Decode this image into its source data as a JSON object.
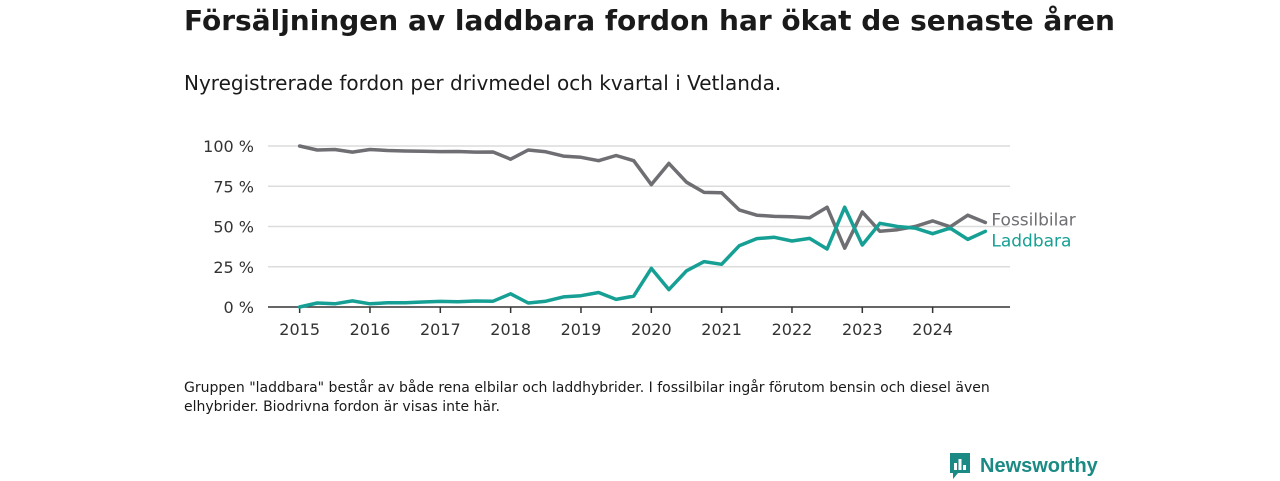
{
  "title": "Försäljningen av laddbara fordon har ökat de senaste åren",
  "subtitle": "Nyregistrerade fordon per drivmedel och kvartal i Vetlanda.",
  "note": "Gruppen \"laddbara\" består av både rena elbilar och laddhybrider. I fossilbilar ingår förutom bensin och diesel även elhybrider. Biodrivna fordon är visas inte här.",
  "brand": {
    "name": "Newsworthy",
    "icon": "newsworthy-logo-icon"
  },
  "colors": {
    "fossil": "#6e6e73",
    "laddbara": "#16a095",
    "grid": "#dcdcdc",
    "axis": "#333333",
    "brand": "#1b8a84"
  },
  "chart_data": {
    "type": "line",
    "x_start": 2015,
    "x_step": 0.25,
    "x_ticks": [
      2015,
      2016,
      2017,
      2018,
      2019,
      2020,
      2021,
      2022,
      2023,
      2024
    ],
    "y_ticks": [
      0,
      25,
      50,
      75,
      100
    ],
    "y_tick_labels": [
      "0 %",
      "25 %",
      "50 %",
      "75 %",
      "100 %"
    ],
    "ylim": [
      0,
      100
    ],
    "xlim": [
      2014.55,
      2025.1
    ],
    "grid": true,
    "series": [
      {
        "name": "Fossilbilar",
        "color_key": "fossil",
        "values": [
          100,
          97.5,
          97.8,
          96.2,
          97.8,
          97.2,
          96.9,
          96.8,
          96.5,
          96.6,
          96.2,
          96.3,
          91.8,
          97.5,
          96.4,
          93.7,
          93.0,
          90.9,
          94.1,
          90.9,
          76.0,
          89.2,
          77.5,
          71.2,
          71.0,
          60.3,
          57.0,
          56.3,
          56.0,
          55.4,
          62.0,
          36.5,
          59.0,
          47.0,
          48.0,
          50.0,
          53.5,
          49.8,
          57.0,
          52.5
        ]
      },
      {
        "name": "Laddbara",
        "color_key": "laddbara",
        "values": [
          0,
          2.5,
          2.0,
          3.8,
          2.0,
          2.6,
          2.6,
          3.1,
          3.5,
          3.3,
          3.7,
          3.6,
          8.2,
          2.5,
          3.6,
          6.3,
          7.0,
          9.0,
          4.7,
          6.8,
          24.0,
          10.8,
          22.5,
          28.2,
          26.5,
          38.0,
          42.5,
          43.3,
          41.0,
          42.6,
          36.0,
          62.0,
          38.5,
          52.0,
          50.0,
          49.0,
          45.5,
          49.0,
          42.0,
          47.0
        ]
      }
    ]
  }
}
